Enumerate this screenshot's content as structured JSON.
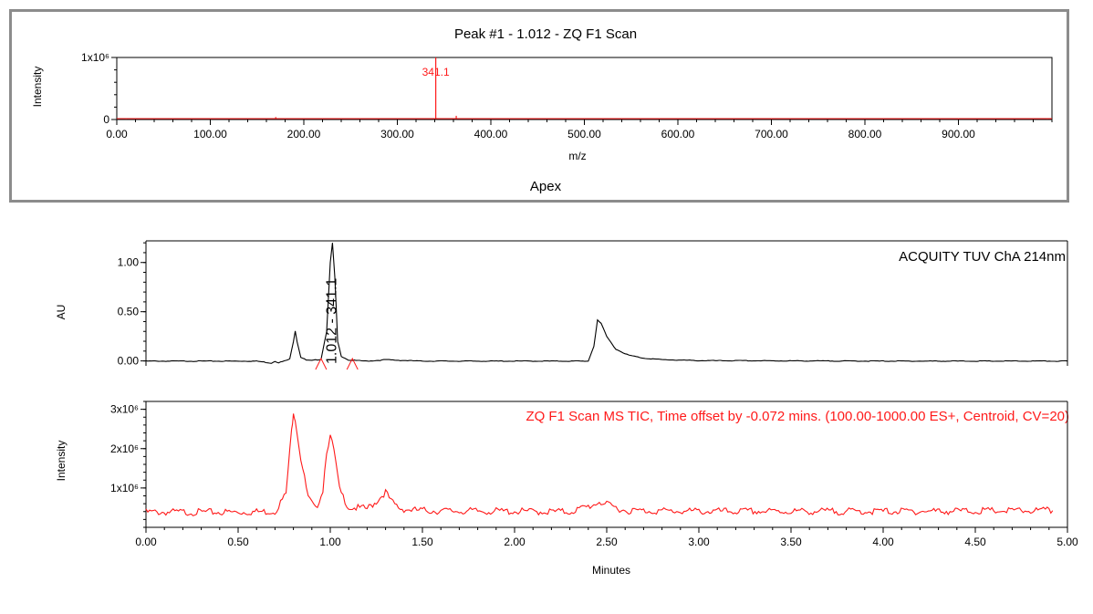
{
  "report": {
    "colors": {
      "ms": "#ff1a1a",
      "uv": "#000000",
      "frame": "#8c8c8c"
    }
  },
  "chart_data": [
    {
      "type": "line",
      "title": "Peak #1 - 1.012 - ZQ F1 Scan",
      "subtitle": "Apex",
      "xlabel": "m/z",
      "ylabel": "Intensity",
      "xlim": [
        0,
        1000
      ],
      "ylim": [
        0,
        1000000
      ],
      "x_ticks": [
        "0.00",
        "100.00",
        "200.00",
        "300.00",
        "400.00",
        "500.00",
        "600.00",
        "700.00",
        "800.00",
        "900.00"
      ],
      "x_tick_values": [
        0,
        100,
        200,
        300,
        400,
        500,
        600,
        700,
        800,
        900
      ],
      "y_ticks": [
        "0",
        "1x10⁶"
      ],
      "y_tick_values": [
        0,
        1000000
      ],
      "peak_label": "341.1",
      "series": [
        {
          "color": "#ff1a1a",
          "x": [
            10,
            55,
            100,
            130,
            170,
            215,
            255,
            300,
            341.1,
            363,
            400,
            455,
            520,
            600,
            700,
            800,
            900,
            995
          ],
          "y": [
            6000,
            8000,
            10000,
            9000,
            40000,
            20000,
            12000,
            15000,
            1000000,
            60000,
            10000,
            8000,
            7000,
            9000,
            6000,
            7000,
            5000,
            6000
          ]
        }
      ]
    },
    {
      "type": "line",
      "title": "ACQUITY TUV ChA 214nm",
      "xlabel": "",
      "ylabel": "AU",
      "xlim": [
        0,
        5
      ],
      "ylim": [
        -0.05,
        1.22
      ],
      "y_ticks": [
        "0.00",
        "0.50",
        "1.00"
      ],
      "y_tick_values": [
        0,
        0.5,
        1.0
      ],
      "peak_annotation": "1.012 - 341.1",
      "series": [
        {
          "color": "#000000",
          "x": [
            0,
            0.6,
            0.68,
            0.7,
            0.72,
            0.75,
            0.78,
            0.8,
            0.81,
            0.82,
            0.84,
            0.87,
            0.9,
            0.95,
            0.98,
            1.0,
            1.012,
            1.025,
            1.04,
            1.06,
            1.1,
            1.2,
            1.28,
            1.3,
            1.35,
            1.5,
            2.0,
            2.4,
            2.43,
            2.45,
            2.47,
            2.5,
            2.55,
            2.62,
            2.7,
            2.8,
            3.0,
            4.0,
            5.0
          ],
          "y": [
            0,
            0,
            -0.02,
            0,
            -0.015,
            0,
            0.02,
            0.2,
            0.31,
            0.2,
            0.04,
            0.01,
            0.005,
            0.02,
            0.3,
            1.0,
            1.2,
            0.85,
            0.2,
            0.05,
            0.01,
            0,
            0.01,
            0.015,
            0.01,
            0,
            0,
            0,
            0.15,
            0.42,
            0.38,
            0.25,
            0.12,
            0.06,
            0.03,
            0.015,
            0.005,
            0,
            0
          ]
        }
      ]
    },
    {
      "type": "line",
      "title": "ZQ F1 Scan MS TIC, Time offset by  -0.072 mins. (100.00-1000.00 ES+, Centroid, CV=20)",
      "xlabel": "Minutes",
      "ylabel": "Intensity",
      "xlim": [
        0,
        5
      ],
      "ylim": [
        0,
        3200000
      ],
      "x_ticks": [
        "0.00",
        "0.50",
        "1.00",
        "1.50",
        "2.00",
        "2.50",
        "3.00",
        "3.50",
        "4.00",
        "4.50",
        "5.00"
      ],
      "x_tick_values": [
        0,
        0.5,
        1,
        1.5,
        2,
        2.5,
        3,
        3.5,
        4,
        4.5,
        5
      ],
      "y_ticks": [
        "1x10⁶",
        "2x10⁶",
        "3x10⁶"
      ],
      "y_tick_values": [
        1000000,
        2000000,
        3000000
      ],
      "series": [
        {
          "color": "#ff1a1a",
          "x": [
            0,
            0.5,
            0.7,
            0.76,
            0.79,
            0.8,
            0.81,
            0.84,
            0.88,
            0.92,
            0.96,
            0.98,
            1.0,
            1.02,
            1.05,
            1.1,
            1.2,
            1.25,
            1.28,
            1.3,
            1.33,
            1.38,
            1.45,
            1.6,
            2.0,
            2.3,
            2.42,
            2.46,
            2.5,
            2.6,
            3.0,
            3.5,
            4.0,
            4.5,
            4.92
          ],
          "y": [
            430000,
            430000,
            450000,
            900000,
            2500000,
            3000000,
            2800000,
            1800000,
            800000,
            500000,
            1000000,
            2000000,
            2350000,
            2000000,
            1000000,
            550000,
            520000,
            700000,
            850000,
            950000,
            700000,
            520000,
            480000,
            460000,
            450000,
            440000,
            600000,
            700000,
            620000,
            470000,
            450000,
            450000,
            450000,
            460000,
            470000
          ]
        }
      ]
    }
  ]
}
